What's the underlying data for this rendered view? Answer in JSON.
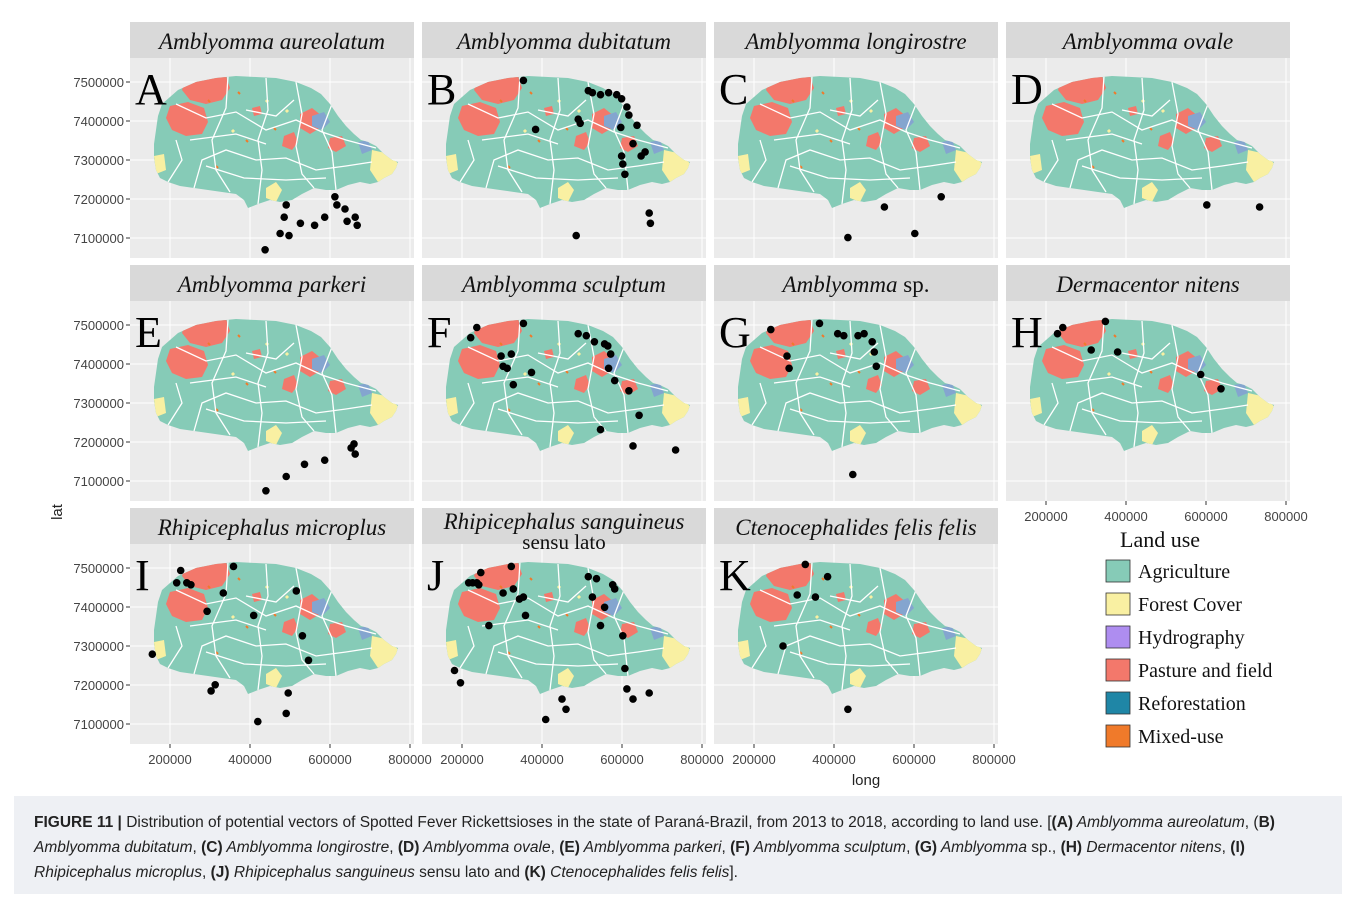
{
  "figure": {
    "panels": [
      {
        "letter": "A",
        "species": "Amblyomma aureolatum",
        "sub": ""
      },
      {
        "letter": "B",
        "species": "Amblyomma dubitatum",
        "sub": ""
      },
      {
        "letter": "C",
        "species": "Amblyomma longirostre",
        "sub": ""
      },
      {
        "letter": "D",
        "species": "Amblyomma ovale",
        "sub": ""
      },
      {
        "letter": "E",
        "species": "Amblyomma parkeri",
        "sub": ""
      },
      {
        "letter": "F",
        "species": "Amblyomma sculptum",
        "sub": ""
      },
      {
        "letter": "G",
        "species": "Amblyomma",
        "sub": " sp."
      },
      {
        "letter": "H",
        "species": "Dermacentor nitens",
        "sub": ""
      },
      {
        "letter": "I",
        "species": "Rhipicephalus microplus",
        "sub": ""
      },
      {
        "letter": "J",
        "species": "Rhipicephalus sanguineus",
        "sub": "sensu lato"
      },
      {
        "letter": "K",
        "species": "Ctenocephalides felis felis",
        "sub": ""
      }
    ],
    "y_ticks": [
      "7500000",
      "7400000",
      "7300000",
      "7200000",
      "7100000"
    ],
    "x_ticks": [
      "200000",
      "400000",
      "600000",
      "800000"
    ],
    "xlabel": "long",
    "ylabel": "lat",
    "legend": {
      "title": "Land use",
      "items": [
        {
          "label": "Agriculture",
          "color": "#86cbb7"
        },
        {
          "label": "Forest Cover",
          "color": "#f9f0a2"
        },
        {
          "label": "Hydrography",
          "color": "#ae8df0"
        },
        {
          "label": "Pasture and field",
          "color": "#f3786b"
        },
        {
          "label": "Reforestation",
          "color": "#1f86a6"
        },
        {
          "label": "Mixed-use",
          "color": "#f07a2a"
        }
      ]
    }
  },
  "chart_data": {
    "type": "scatter",
    "xlabel": "long",
    "ylabel": "lat",
    "xlim": [
      120000,
      820000
    ],
    "ylim": [
      7050000,
      7540000
    ],
    "series": [
      {
        "name": "Amblyomma aureolatum",
        "points": [
          [
            453000,
            7070000
          ],
          [
            490000,
            7110000
          ],
          [
            500000,
            7150000
          ],
          [
            505000,
            7180000
          ],
          [
            512000,
            7105000
          ],
          [
            540000,
            7135000
          ],
          [
            575000,
            7130000
          ],
          [
            600000,
            7150000
          ],
          [
            625000,
            7200000
          ],
          [
            630000,
            7180000
          ],
          [
            650000,
            7170000
          ],
          [
            655000,
            7140000
          ],
          [
            675000,
            7150000
          ],
          [
            680000,
            7130000
          ]
        ]
      },
      {
        "name": "Amblyomma dubitatum",
        "points": [
          [
            370000,
            7485000
          ],
          [
            400000,
            7365000
          ],
          [
            500000,
            7105000
          ],
          [
            505000,
            7390000
          ],
          [
            510000,
            7380000
          ],
          [
            530000,
            7460000
          ],
          [
            540000,
            7455000
          ],
          [
            560000,
            7450000
          ],
          [
            580000,
            7455000
          ],
          [
            600000,
            7450000
          ],
          [
            612000,
            7440000
          ],
          [
            610000,
            7370000
          ],
          [
            612000,
            7300000
          ],
          [
            615000,
            7280000
          ],
          [
            620000,
            7255000
          ],
          [
            625000,
            7420000
          ],
          [
            630000,
            7400000
          ],
          [
            640000,
            7330000
          ],
          [
            650000,
            7375000
          ],
          [
            660000,
            7300000
          ],
          [
            670000,
            7310000
          ],
          [
            680000,
            7160000
          ],
          [
            683000,
            7135000
          ]
        ]
      },
      {
        "name": "Amblyomma longirostre",
        "points": [
          [
            450000,
            7100000
          ],
          [
            540000,
            7175000
          ],
          [
            615000,
            7110000
          ],
          [
            680000,
            7200000
          ]
        ]
      },
      {
        "name": "Amblyomma ovale",
        "points": [
          [
            615000,
            7180000
          ],
          [
            745000,
            7175000
          ]
        ]
      },
      {
        "name": "Amblyomma parkeri",
        "points": [
          [
            455000,
            7075000
          ],
          [
            505000,
            7110000
          ],
          [
            550000,
            7140000
          ],
          [
            600000,
            7150000
          ],
          [
            665000,
            7180000
          ],
          [
            672000,
            7190000
          ],
          [
            675000,
            7165000
          ]
        ]
      },
      {
        "name": "Amblyomma sculptum",
        "points": [
          [
            240000,
            7450000
          ],
          [
            255000,
            7475000
          ],
          [
            315000,
            7405000
          ],
          [
            320000,
            7380000
          ],
          [
            330000,
            7375000
          ],
          [
            340000,
            7410000
          ],
          [
            345000,
            7335000
          ],
          [
            370000,
            7485000
          ],
          [
            390000,
            7365000
          ],
          [
            505000,
            7460000
          ],
          [
            525000,
            7455000
          ],
          [
            545000,
            7440000
          ],
          [
            560000,
            7225000
          ],
          [
            570000,
            7435000
          ],
          [
            578000,
            7430000
          ],
          [
            585000,
            7410000
          ],
          [
            580000,
            7375000
          ],
          [
            595000,
            7345000
          ],
          [
            630000,
            7320000
          ],
          [
            640000,
            7185000
          ],
          [
            655000,
            7260000
          ],
          [
            745000,
            7175000
          ]
        ]
      },
      {
        "name": "Amblyomma sp.",
        "points": [
          [
            260000,
            7470000
          ],
          [
            300000,
            7405000
          ],
          [
            305000,
            7375000
          ],
          [
            380000,
            7485000
          ],
          [
            425000,
            7460000
          ],
          [
            440000,
            7455000
          ],
          [
            462000,
            7115000
          ],
          [
            475000,
            7455000
          ],
          [
            490000,
            7460000
          ],
          [
            510000,
            7440000
          ],
          [
            515000,
            7415000
          ],
          [
            520000,
            7380000
          ]
        ]
      },
      {
        "name": "Dermacentor nitens",
        "points": [
          [
            247000,
            7460000
          ],
          [
            260000,
            7475000
          ],
          [
            330000,
            7420000
          ],
          [
            365000,
            7490000
          ],
          [
            395000,
            7415000
          ],
          [
            600000,
            7360000
          ],
          [
            650000,
            7325000
          ]
        ]
      },
      {
        "name": "Rhipicephalus microplus",
        "points": [
          [
            175000,
            7270000
          ],
          [
            235000,
            7445000
          ],
          [
            245000,
            7475000
          ],
          [
            260000,
            7445000
          ],
          [
            270000,
            7440000
          ],
          [
            310000,
            7375000
          ],
          [
            320000,
            7180000
          ],
          [
            330000,
            7195000
          ],
          [
            350000,
            7420000
          ],
          [
            375000,
            7485000
          ],
          [
            425000,
            7365000
          ],
          [
            435000,
            7105000
          ],
          [
            505000,
            7125000
          ],
          [
            510000,
            7175000
          ],
          [
            530000,
            7425000
          ],
          [
            545000,
            7315000
          ],
          [
            560000,
            7255000
          ]
        ]
      },
      {
        "name": "Rhipicephalus sanguineus sensu lato",
        "points": [
          [
            200000,
            7230000
          ],
          [
            215000,
            7200000
          ],
          [
            235000,
            7445000
          ],
          [
            245000,
            7445000
          ],
          [
            255000,
            7445000
          ],
          [
            260000,
            7440000
          ],
          [
            265000,
            7470000
          ],
          [
            285000,
            7340000
          ],
          [
            320000,
            7420000
          ],
          [
            340000,
            7485000
          ],
          [
            345000,
            7430000
          ],
          [
            360000,
            7405000
          ],
          [
            370000,
            7410000
          ],
          [
            375000,
            7365000
          ],
          [
            425000,
            7110000
          ],
          [
            465000,
            7160000
          ],
          [
            475000,
            7135000
          ],
          [
            530000,
            7460000
          ],
          [
            540000,
            7410000
          ],
          [
            550000,
            7455000
          ],
          [
            560000,
            7340000
          ],
          [
            570000,
            7385000
          ],
          [
            590000,
            7440000
          ],
          [
            595000,
            7430000
          ],
          [
            615000,
            7315000
          ],
          [
            620000,
            7235000
          ],
          [
            625000,
            7185000
          ],
          [
            640000,
            7160000
          ],
          [
            680000,
            7175000
          ]
        ]
      },
      {
        "name": "Ctenocephalides felis felis",
        "points": [
          [
            290000,
            7290000
          ],
          [
            325000,
            7415000
          ],
          [
            345000,
            7490000
          ],
          [
            370000,
            7410000
          ],
          [
            400000,
            7460000
          ],
          [
            450000,
            7135000
          ]
        ]
      }
    ]
  },
  "caption": {
    "label": "FIGURE 11 |",
    "segments": [
      {
        "t": " Distribution of potential vectors of Spotted Fever Rickettsioses in the state of Paraná-Brazil, from 2013 to 2018, according to land use. [",
        "s": "n"
      },
      {
        "t": "(A)",
        "s": "b"
      },
      {
        "t": " Amblyomma aureolatum",
        "s": "i"
      },
      {
        "t": ", (",
        "s": "n"
      },
      {
        "t": "B)",
        "s": "b"
      },
      {
        "t": " Amblyomma dubitatum",
        "s": "i"
      },
      {
        "t": ", ",
        "s": "n"
      },
      {
        "t": "(C)",
        "s": "b"
      },
      {
        "t": " Amblyomma longirostre",
        "s": "i"
      },
      {
        "t": ", ",
        "s": "n"
      },
      {
        "t": "(D)",
        "s": "b"
      },
      {
        "t": " Amblyomma ovale",
        "s": "i"
      },
      {
        "t": ", ",
        "s": "n"
      },
      {
        "t": "(E)",
        "s": "b"
      },
      {
        "t": " Amblyomma parkeri",
        "s": "i"
      },
      {
        "t": ", ",
        "s": "n"
      },
      {
        "t": "(F)",
        "s": "b"
      },
      {
        "t": " Amblyomma sculptum",
        "s": "i"
      },
      {
        "t": ", ",
        "s": "n"
      },
      {
        "t": "(G)",
        "s": "b"
      },
      {
        "t": " Amblyomma",
        "s": "i"
      },
      {
        "t": " sp., ",
        "s": "n"
      },
      {
        "t": "(H)",
        "s": "b"
      },
      {
        "t": " Dermacentor nitens",
        "s": "i"
      },
      {
        "t": ", ",
        "s": "n"
      },
      {
        "t": "(I)",
        "s": "b"
      },
      {
        "t": " Rhipicephalus microplus",
        "s": "i"
      },
      {
        "t": ", ",
        "s": "n"
      },
      {
        "t": "(J)",
        "s": "b"
      },
      {
        "t": " Rhipicephalus sanguineus",
        "s": "i"
      },
      {
        "t": " sensu lato and ",
        "s": "n"
      },
      {
        "t": "(K)",
        "s": "b"
      },
      {
        "t": " Ctenocephalides felis felis",
        "s": "i"
      },
      {
        "t": "].",
        "s": "n"
      }
    ]
  }
}
